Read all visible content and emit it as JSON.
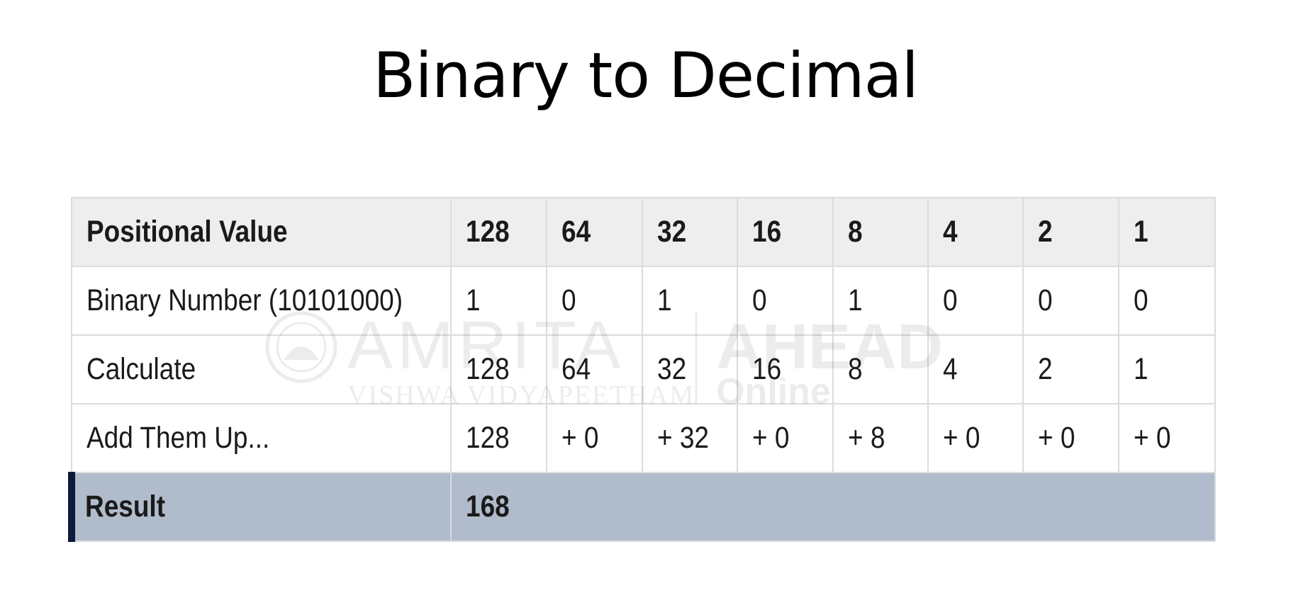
{
  "title": "Binary to Decimal",
  "table": {
    "rows": [
      {
        "label": "Positional Value",
        "cells": [
          "128",
          "64",
          "32",
          "16",
          "8",
          "4",
          "2",
          "1"
        ]
      },
      {
        "label": "Binary Number (10101000)",
        "cells": [
          "1",
          "0",
          "1",
          "0",
          "1",
          "0",
          "0",
          "0"
        ]
      },
      {
        "label": "Calculate",
        "cells": [
          "128",
          "64",
          "32",
          "16",
          "8",
          "4",
          "2",
          "1"
        ]
      },
      {
        "label": "Add Them Up...",
        "cells": [
          "128",
          "+ 0",
          "+ 32",
          "+ 0",
          "+ 8",
          "+ 0",
          "+ 0",
          "+ 0"
        ]
      }
    ],
    "result": {
      "label": "Result",
      "value": "168"
    }
  },
  "watermark": {
    "brand": "AMRITA",
    "subtitle": "VISHWA VIDYAPEETHAM",
    "tag": "AHEAD",
    "tag_sub": "Online"
  },
  "colors": {
    "header_bg": "#eeeeee",
    "result_bg": "#b0bccc",
    "result_accent": "#0d1a3a",
    "grid": "#dcdcdc"
  }
}
